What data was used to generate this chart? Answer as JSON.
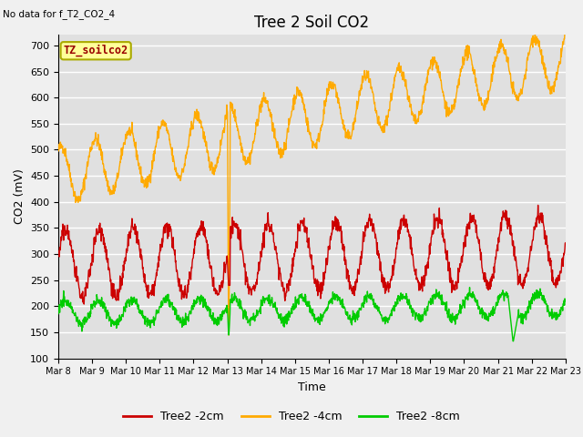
{
  "title": "Tree 2 Soil CO2",
  "subtitle": "No data for f_T2_CO2_4",
  "ylabel": "CO2 (mV)",
  "xlabel": "Time",
  "ylim": [
    100,
    720
  ],
  "yticks": [
    100,
    150,
    200,
    250,
    300,
    350,
    400,
    450,
    500,
    550,
    600,
    650,
    700
  ],
  "xtick_labels": [
    "Mar 8",
    "Mar 9",
    "Mar 10",
    "Mar 11",
    "Mar 12",
    "Mar 13",
    "Mar 14",
    "Mar 15",
    "Mar 16",
    "Mar 17",
    "Mar 18",
    "Mar 19",
    "Mar 20",
    "Mar 21",
    "Mar 22",
    "Mar 23"
  ],
  "legend_labels": [
    "Tree2 -2cm",
    "Tree2 -4cm",
    "Tree2 -8cm"
  ],
  "legend_colors": [
    "#cc0000",
    "#ffaa00",
    "#00cc00"
  ],
  "line_colors": [
    "#cc0000",
    "#ffaa00",
    "#00cc00"
  ],
  "box_label": "TZ_soilco2",
  "box_color": "#ffff99",
  "box_edge": "#aaaa00",
  "bg_color": "#e0e0e0",
  "grid_color": "#ffffff",
  "fig_color": "#f0f0f0",
  "title_fontsize": 12,
  "label_fontsize": 9,
  "tick_fontsize": 8
}
